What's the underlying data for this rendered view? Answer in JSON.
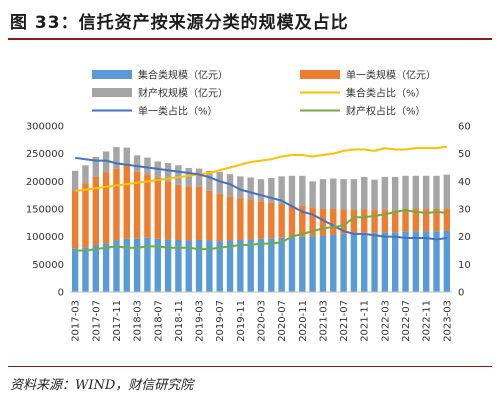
{
  "title": "图 33：信托资产按来源分类的规模及占比",
  "source": "资料来源：WIND，财信研究院",
  "chart_data": {
    "type": "bar",
    "stacked": true,
    "categories": [
      "2017-03",
      "2017-05",
      "2017-07",
      "2017-09",
      "2017-11",
      "2018-01",
      "2018-03",
      "2018-05",
      "2018-07",
      "2018-09",
      "2018-11",
      "2019-01",
      "2019-03",
      "2019-05",
      "2019-07",
      "2019-09",
      "2019-11",
      "2020-01",
      "2020-03",
      "2020-05",
      "2020-07",
      "2020-09",
      "2020-11",
      "2021-01",
      "2021-03",
      "2021-05",
      "2021-07",
      "2021-09",
      "2021-11",
      "2022-01",
      "2022-03",
      "2022-05",
      "2022-07",
      "2022-09",
      "2022-11",
      "2023-01",
      "2023-03"
    ],
    "x_tick_labels": [
      "2017-03",
      "2017-07",
      "2017-11",
      "2018-03",
      "2018-07",
      "2018-11",
      "2019-03",
      "2019-07",
      "2019-11",
      "2020-03",
      "2020-07",
      "2020-11",
      "2021-03",
      "2021-07",
      "2021-11",
      "2022-03",
      "2022-07",
      "2022-11",
      "2023-03"
    ],
    "y_left": {
      "ylim": [
        0,
        300000
      ],
      "ticks": [
        "0",
        "50000",
        "100000",
        "150000",
        "200000",
        "250000",
        "300000"
      ]
    },
    "y_right": {
      "ylim": [
        0,
        60
      ],
      "ticks": [
        "0",
        "10",
        "20",
        "30",
        "40",
        "50",
        "60"
      ]
    },
    "grid": false,
    "legend_position": "top",
    "series": [
      {
        "name": "集合类规模（亿元）",
        "kind": "bar",
        "axis": "left",
        "color": "#5B9BD5",
        "values": [
          79000,
          81000,
          85000,
          88000,
          93000,
          96000,
          97000,
          98000,
          96000,
          95000,
          94000,
          93000,
          94000,
          93000,
          92000,
          93000,
          94000,
          95000,
          96000,
          97000,
          98000,
          99000,
          100000,
          101000,
          102000,
          104000,
          105000,
          106000,
          107000,
          107000,
          108000,
          108000,
          109000,
          110000,
          110000,
          110000,
          111000
        ]
      },
      {
        "name": "单一类规模（亿元）",
        "kind": "bar",
        "axis": "left",
        "color": "#ED7D31",
        "values": [
          105000,
          115000,
          123000,
          128000,
          130000,
          135000,
          120000,
          115000,
          110000,
          105000,
          100000,
          98000,
          96000,
          90000,
          85000,
          80000,
          75000,
          72000,
          68000,
          64000,
          61000,
          58000,
          56000,
          52000,
          48000,
          46000,
          44000,
          43000,
          42000,
          41000,
          40000,
          40000,
          41000,
          41000,
          40000,
          40000,
          40000
        ]
      },
      {
        "name": "财产权规模（亿元）",
        "kind": "bar",
        "axis": "left",
        "color": "#A5A5A5",
        "values": [
          35000,
          33000,
          36000,
          38000,
          39000,
          30000,
          30000,
          30000,
          30000,
          33000,
          35000,
          33000,
          33000,
          36000,
          40000,
          40000,
          40000,
          40000,
          40000,
          45000,
          50000,
          53000,
          54000,
          47000,
          54000,
          55000,
          55000,
          55000,
          59000,
          55000,
          60000,
          60000,
          60000,
          59000,
          60000,
          60000,
          61000
        ]
      },
      {
        "name": "集合类占比（%）",
        "kind": "line",
        "axis": "right",
        "color": "#FFC000",
        "values": [
          36.5,
          37.0,
          37.5,
          38.0,
          38.5,
          39.0,
          39.5,
          40.0,
          40.5,
          41.0,
          41.5,
          42.0,
          42.5,
          43.0,
          44.0,
          45.0,
          46.0,
          47.0,
          47.5,
          48.0,
          49.0,
          49.5,
          49.5,
          49.0,
          49.5,
          50.0,
          51.0,
          51.5,
          51.5,
          51.0,
          52.0,
          51.5,
          51.5,
          52.0,
          52.0,
          52.0,
          52.5
        ]
      },
      {
        "name": "单一类占比（%）",
        "kind": "line",
        "axis": "right",
        "color": "#4472C4",
        "values": [
          48.5,
          48.0,
          47.5,
          47.5,
          46.5,
          46.0,
          45.5,
          45.0,
          44.5,
          44.0,
          43.5,
          43.0,
          42.5,
          41.5,
          40.0,
          39.0,
          37.0,
          36.0,
          35.0,
          34.0,
          33.0,
          31.0,
          29.0,
          28.0,
          26.0,
          24.0,
          22.0,
          21.0,
          21.0,
          20.5,
          20.0,
          20.0,
          19.5,
          19.5,
          19.5,
          19.0,
          19.5
        ]
      },
      {
        "name": "财产权占比（%）",
        "kind": "line",
        "axis": "right",
        "color": "#70AD47",
        "values": [
          15.0,
          15.0,
          15.5,
          16.0,
          16.5,
          16.0,
          16.0,
          16.5,
          16.5,
          16.0,
          16.0,
          16.0,
          15.5,
          15.5,
          16.0,
          16.5,
          17.0,
          17.0,
          17.5,
          17.5,
          18.0,
          20.0,
          21.0,
          22.0,
          23.0,
          23.5,
          24.0,
          27.0,
          27.0,
          27.5,
          28.0,
          29.0,
          29.5,
          29.0,
          28.5,
          29.0,
          28.5
        ]
      }
    ]
  }
}
